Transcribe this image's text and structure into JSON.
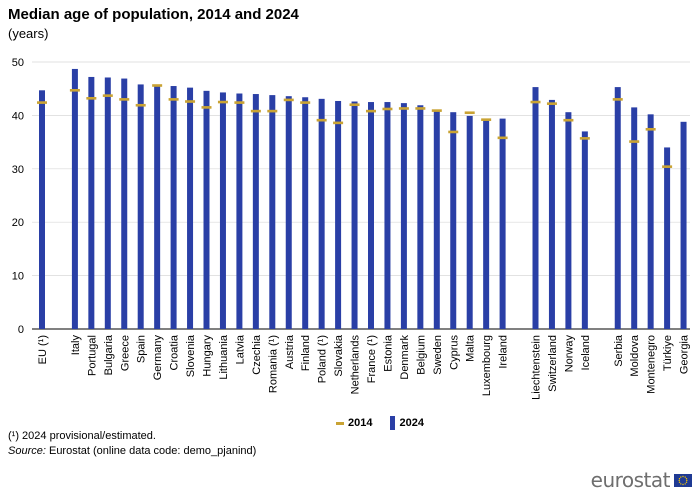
{
  "title": "Median age of population, 2014 and 2024",
  "subtitle": "(years)",
  "legend": {
    "label_2014": "2014",
    "label_2024": "2024"
  },
  "footnote": "(¹) 2024 provisional/estimated.",
  "source": {
    "label": "Source:",
    "text": " Eurostat (online data code: demo_pjanind)"
  },
  "logo_text": "eurostat",
  "colors": {
    "bar_2024": "#2a3fa6",
    "marker_2014": "#c9a334",
    "grid": "#d9d9d9"
  },
  "chart_data": {
    "type": "bar",
    "title": "Median age of population, 2014 and 2024",
    "subtitle": "(years)",
    "xlabel": "",
    "ylabel": "",
    "ylim": [
      0,
      50
    ],
    "yticks": [
      0,
      10,
      20,
      30,
      40,
      50
    ],
    "grid": true,
    "legend_position": "bottom",
    "groups": [
      [
        "EU (¹)"
      ],
      [
        "Italy",
        "Portugal",
        "Bulgaria",
        "Greece",
        "Spain",
        "Germany",
        "Croatia",
        "Slovenia",
        "Hungary",
        "Lithuania",
        "Latvia",
        "Czechia",
        "Romania (¹)",
        "Austria",
        "Finland",
        "Poland (¹)",
        "Slovakia",
        "Netherlands",
        "France (¹)",
        "Estonia",
        "Denmark",
        "Belgium",
        "Sweden",
        "Cyprus",
        "Malta",
        "Luxembourg",
        "Ireland"
      ],
      [
        "Liechtenstein",
        "Switzerland",
        "Norway",
        "Iceland"
      ],
      [
        "Serbia",
        "Moldova",
        "Montenegro",
        "Türkiye",
        "Georgia"
      ]
    ],
    "categories": [
      "EU (¹)",
      "Italy",
      "Portugal",
      "Bulgaria",
      "Greece",
      "Spain",
      "Germany",
      "Croatia",
      "Slovenia",
      "Hungary",
      "Lithuania",
      "Latvia",
      "Czechia",
      "Romania (¹)",
      "Austria",
      "Finland",
      "Poland (¹)",
      "Slovakia",
      "Netherlands",
      "France (¹)",
      "Estonia",
      "Denmark",
      "Belgium",
      "Sweden",
      "Cyprus",
      "Malta",
      "Luxembourg",
      "Ireland",
      "Liechtenstein",
      "Switzerland",
      "Norway",
      "Iceland",
      "Serbia",
      "Moldova",
      "Montenegro",
      "Türkiye",
      "Georgia"
    ],
    "series": [
      {
        "name": "2024",
        "kind": "bar",
        "values": [
          44.7,
          48.7,
          47.2,
          47.1,
          46.9,
          45.8,
          45.7,
          45.5,
          45.2,
          44.6,
          44.3,
          44.1,
          44.0,
          43.8,
          43.6,
          43.4,
          43.1,
          42.7,
          42.6,
          42.5,
          42.5,
          42.3,
          41.9,
          41.1,
          40.6,
          39.9,
          39.3,
          39.4,
          45.3,
          42.9,
          40.6,
          37.0,
          45.3,
          41.5,
          40.2,
          34.0,
          38.8
        ]
      },
      {
        "name": "2014",
        "kind": "marker",
        "values": [
          42.4,
          44.7,
          43.2,
          43.7,
          43.0,
          41.9,
          45.6,
          43.0,
          42.6,
          41.5,
          42.5,
          42.4,
          40.8,
          40.8,
          42.9,
          42.4,
          39.1,
          38.6,
          42.0,
          40.8,
          41.2,
          41.3,
          41.3,
          40.9,
          36.9,
          40.5,
          39.2,
          35.8,
          42.5,
          42.2,
          39.1,
          35.7,
          43.0,
          35.1,
          37.4,
          30.4,
          null
        ]
      }
    ]
  }
}
